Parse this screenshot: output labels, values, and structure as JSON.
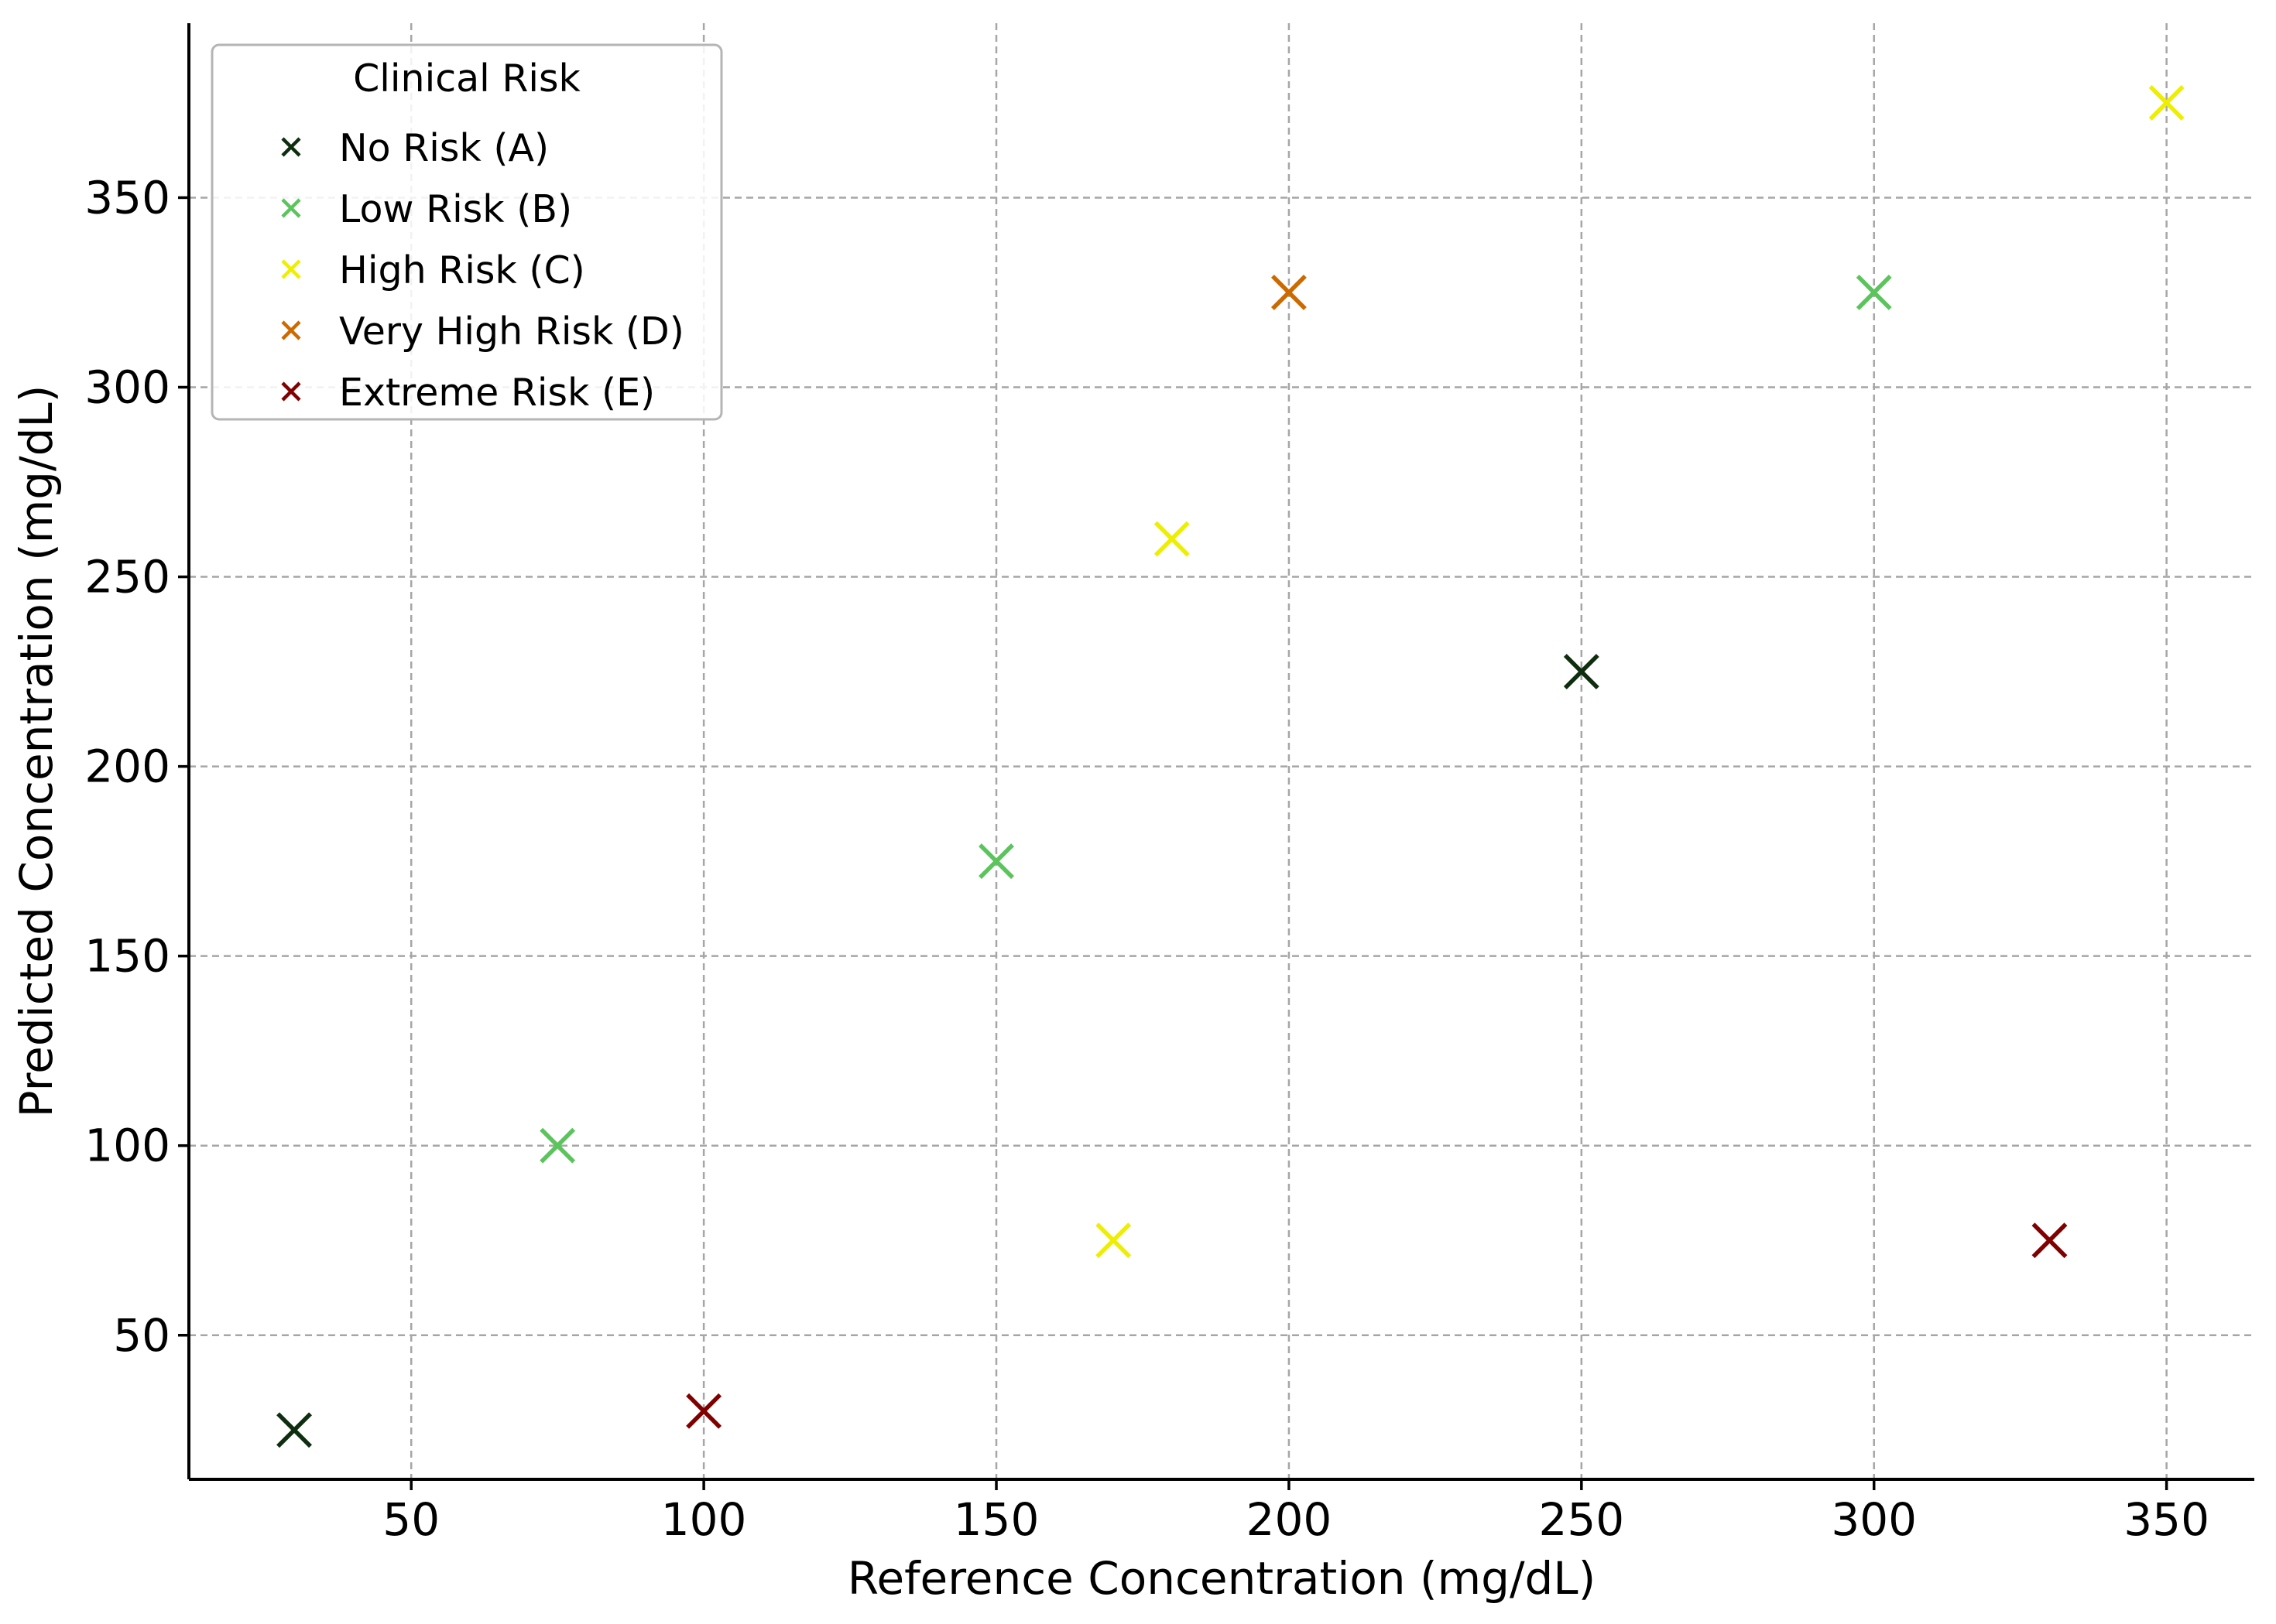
{
  "chart_data": {
    "type": "scatter",
    "title": "",
    "xlabel": "Reference Concentration (mg/dL)",
    "ylabel": "Predicted Concentration (mg/dL)",
    "xlim": [
      12,
      365
    ],
    "ylim": [
      12,
      396
    ],
    "xticks": [
      50,
      100,
      150,
      200,
      250,
      300,
      350
    ],
    "yticks": [
      50,
      100,
      150,
      200,
      250,
      300,
      350
    ],
    "grid": true,
    "marker": "x",
    "legend": {
      "title": "Clinical Risk",
      "placement": "top-left"
    },
    "series": [
      {
        "name": "No Risk (A)",
        "color": "#0f2e0f",
        "points": [
          [
            30,
            25
          ],
          [
            250,
            225
          ]
        ]
      },
      {
        "name": "Low Risk (B)",
        "color": "#5cc45c",
        "points": [
          [
            75,
            100
          ],
          [
            150,
            175
          ],
          [
            300,
            325
          ]
        ]
      },
      {
        "name": "High Risk (C)",
        "color": "#eeee00",
        "points": [
          [
            170,
            75
          ],
          [
            180,
            260
          ],
          [
            350,
            375
          ]
        ]
      },
      {
        "name": "Very High Risk (D)",
        "color": "#cc6a00",
        "points": [
          [
            200,
            325
          ]
        ]
      },
      {
        "name": "Extreme Risk (E)",
        "color": "#800000",
        "points": [
          [
            100,
            30
          ],
          [
            330,
            75
          ]
        ]
      }
    ]
  }
}
